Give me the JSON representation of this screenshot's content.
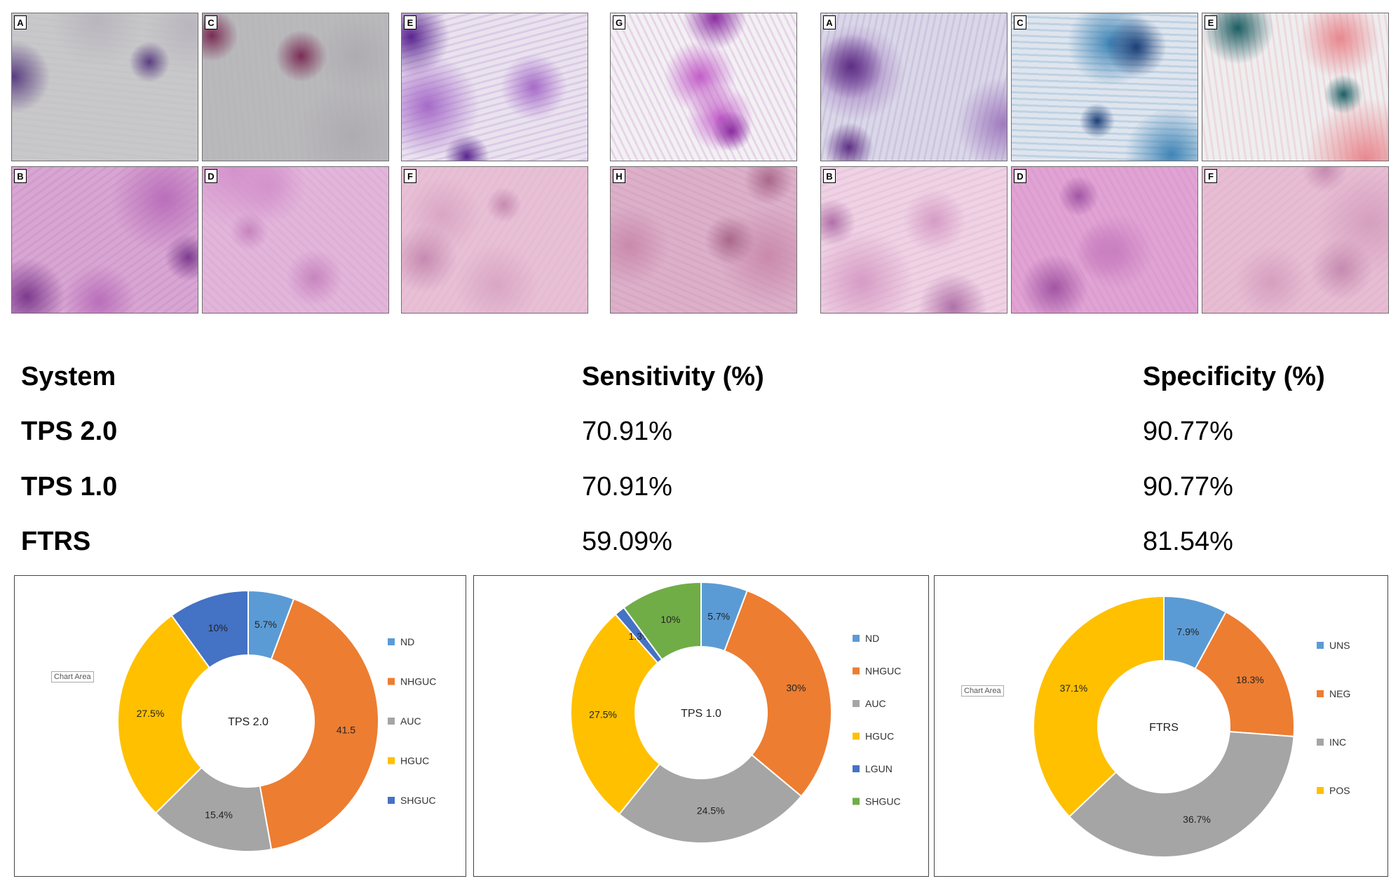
{
  "images": {
    "left_top": [
      {
        "label": "A",
        "colors": [
          "#c8c8ca",
          "#b9b6bd",
          "#5a3e80"
        ]
      },
      {
        "label": "C",
        "colors": [
          "#b9b8bb",
          "#aeacb1",
          "#7a2c54"
        ]
      },
      {
        "label": "E",
        "colors": [
          "#e9e3ee",
          "#a66bc9",
          "#5a2590"
        ]
      },
      {
        "label": "G",
        "colors": [
          "#f2f1f3",
          "#c25ec8",
          "#8a2ca0"
        ]
      }
    ],
    "left_bottom": [
      {
        "label": "B",
        "colors": [
          "#d8a6d2",
          "#b96fba",
          "#7d3b8e"
        ]
      },
      {
        "label": "D",
        "colors": [
          "#e2b5da",
          "#d392cb",
          "#c785bf"
        ]
      },
      {
        "label": "F",
        "colors": [
          "#e8c0d6",
          "#d9a6c4",
          "#c68bb1"
        ]
      },
      {
        "label": "H",
        "colors": [
          "#dcb0c9",
          "#c98aac",
          "#a9688c"
        ]
      }
    ],
    "right_top": [
      {
        "label": "A",
        "colors": [
          "#dad8e8",
          "#a07bbf",
          "#5e2f84"
        ]
      },
      {
        "label": "C",
        "colors": [
          "#dfe5ee",
          "#3f85b6",
          "#1b3f78"
        ]
      },
      {
        "label": "E",
        "colors": [
          "#eeeef0",
          "#e8888f",
          "#1c5e62"
        ]
      }
    ],
    "right_bottom": [
      {
        "label": "B",
        "colors": [
          "#efd2e4",
          "#d69cc5",
          "#b071a8"
        ]
      },
      {
        "label": "D",
        "colors": [
          "#e0a3d3",
          "#c980c0",
          "#a155a3"
        ]
      },
      {
        "label": "F",
        "colors": [
          "#e7bdd3",
          "#d59fbf",
          "#c58bb0"
        ]
      }
    ]
  },
  "table": {
    "headers": [
      "System",
      "Sensitivity (%)",
      "Specificity (%)"
    ],
    "rows": [
      {
        "system": "TPS 2.0",
        "sensitivity": "70.91%",
        "specificity": "90.77%"
      },
      {
        "system": "TPS 1.0",
        "sensitivity": "70.91%",
        "specificity": "90.77%"
      },
      {
        "system": "FTRS",
        "sensitivity": "59.09%",
        "specificity": "81.54%"
      }
    ]
  },
  "chart_data": [
    {
      "type": "pie",
      "center_label": "TPS 2.0",
      "chart_area_label": "Chart Area",
      "categories": [
        "ND",
        "NHGUC",
        "AUC",
        "HGUC",
        "SHGUC"
      ],
      "values": [
        5.7,
        41.5,
        15.4,
        27.5,
        10
      ],
      "value_labels": [
        "5.7%",
        "41.5",
        "15.4%",
        "27.5%",
        "10%"
      ],
      "colors": [
        "#5b9bd5",
        "#ed7d31",
        "#a5a5a5",
        "#ffc000",
        "#4472c4"
      ],
      "legend_position": "right"
    },
    {
      "type": "pie",
      "center_label": "TPS 1.0",
      "categories": [
        "ND",
        "NHGUC",
        "AUC",
        "HGUC",
        "LGUN",
        "SHGUC"
      ],
      "values": [
        5.7,
        30,
        24.5,
        27.5,
        1.3,
        10
      ],
      "value_labels": [
        "5.7%",
        "30%",
        "24.5%",
        "27.5%",
        "1.3%",
        "10%"
      ],
      "colors": [
        "#5b9bd5",
        "#ed7d31",
        "#a5a5a5",
        "#ffc000",
        "#4472c4",
        "#70ad47"
      ],
      "legend_position": "right"
    },
    {
      "type": "pie",
      "center_label": "FTRS",
      "chart_area_label": "Chart Area",
      "categories": [
        "UNS",
        "NEG",
        "INC",
        "POS"
      ],
      "values": [
        7.9,
        18.3,
        36.7,
        37.1
      ],
      "value_labels": [
        "7.9%",
        "18.3%",
        "36.7%",
        "37.1%"
      ],
      "colors": [
        "#5b9bd5",
        "#ed7d31",
        "#a5a5a5",
        "#ffc000"
      ],
      "legend_position": "right"
    }
  ]
}
